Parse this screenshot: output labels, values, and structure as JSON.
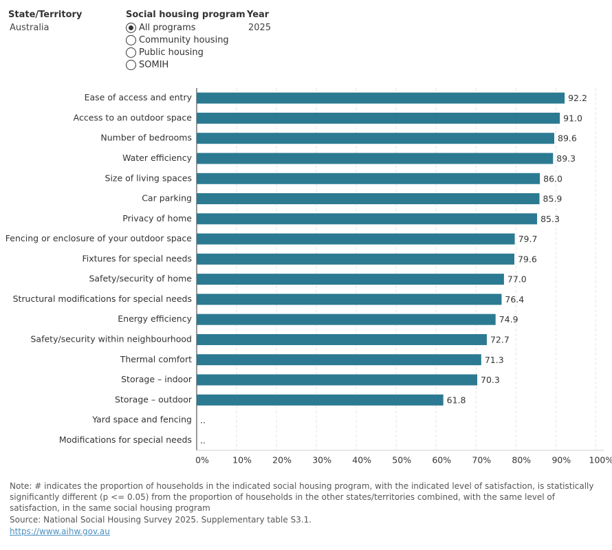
{
  "filters": {
    "state": {
      "label": "State/Territory",
      "value": "Australia"
    },
    "program": {
      "label": "Social housing program",
      "options": [
        "All programs",
        "Community housing",
        "Public housing",
        "SOMIH"
      ],
      "selected": 0
    },
    "year": {
      "label": "Year",
      "value": "2025"
    }
  },
  "chart_data": {
    "type": "bar",
    "orientation": "horizontal",
    "color": "#2b7a92",
    "categories": [
      "Ease of access and entry",
      "Access to an outdoor space",
      "Number of bedrooms",
      "Water efficiency",
      "Size of living spaces",
      "Car parking",
      "Privacy of home",
      "Fencing or enclosure of your outdoor space",
      "Fixtures for special needs",
      "Safety/security of home",
      "Structural modifications for special needs",
      "Energy efficiency",
      "Safety/security within neighbourhood",
      "Thermal comfort",
      "Storage – indoor",
      "Storage – outdoor",
      "Yard space and fencing",
      "Modifications for special needs"
    ],
    "values": [
      92.2,
      91.0,
      89.6,
      89.3,
      86.0,
      85.9,
      85.3,
      79.7,
      79.6,
      77.0,
      76.4,
      74.9,
      72.7,
      71.3,
      70.3,
      61.8,
      null,
      null
    ],
    "value_labels": [
      "92.2",
      "91.0",
      "89.6",
      "89.3",
      "86.0",
      "85.9",
      "85.3",
      "79.7",
      "79.6",
      "77.0",
      "76.4",
      "74.9",
      "72.7",
      "71.3",
      "70.3",
      "61.8",
      "..",
      ".."
    ],
    "xlim": [
      0,
      102
    ],
    "xticks": [
      {
        "value": 0,
        "label": "0%"
      },
      {
        "value": 10,
        "label": "10%"
      },
      {
        "value": 20,
        "label": "20%"
      },
      {
        "value": 30,
        "label": "30%"
      },
      {
        "value": 40,
        "label": "40%"
      },
      {
        "value": 50,
        "label": "50%"
      },
      {
        "value": 60,
        "label": "60%"
      },
      {
        "value": 70,
        "label": "70%"
      },
      {
        "value": 80,
        "label": "80%"
      },
      {
        "value": 90,
        "label": "90%"
      },
      {
        "value": 100,
        "label": "100%"
      }
    ],
    "grid": true
  },
  "footer": {
    "note": "Note: # indicates the proportion of households in the indicated social housing program, with the indicated level of satisfaction, is statistically significantly different (p <= 0.05) from the proportion of households in the other states/territories combined, with the same level of satisfaction, in the same social housing program",
    "source": "Source: National Social Housing Survey 2025. Supplementary table S3.1.",
    "link": "https://www.aihw.gov.au"
  }
}
